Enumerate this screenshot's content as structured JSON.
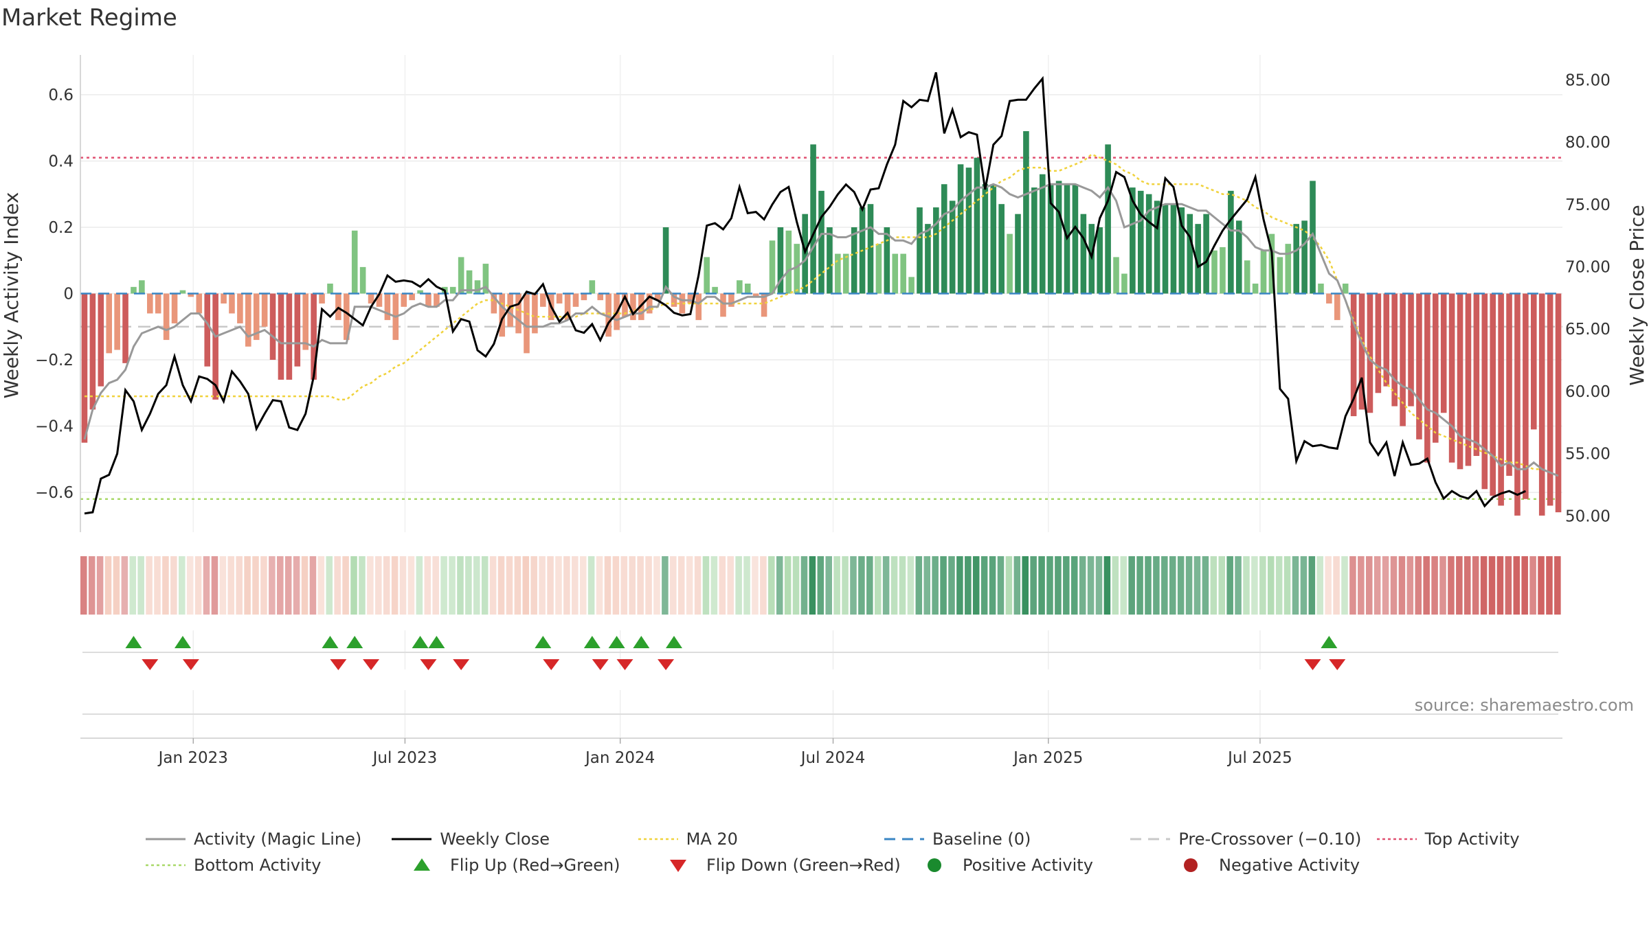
{
  "title": "Market Regime",
  "source": "source: sharemaestro.com",
  "colors": {
    "pos_dark": "#2e8b57",
    "pos_light": "#80c481",
    "neg_dark": "#cd5c5c",
    "neg_light": "#e9967a",
    "close": "#000000",
    "activity_line": "#999999",
    "ma20": "#f0d23c",
    "baseline": "#3a86c4",
    "pre_crossover": "#c8c8c8",
    "top": "#e05070",
    "bottom": "#a8d868",
    "flip_up": "#2ca02c",
    "flip_down": "#d62728",
    "pos_dot": "#1a8a2e",
    "neg_dot": "#b22222"
  },
  "legend": [
    {
      "label": "Activity (Magic Line)",
      "symbol": "line",
      "color": "#999999"
    },
    {
      "label": "Weekly Close",
      "symbol": "line",
      "color": "#000000"
    },
    {
      "label": "MA 20",
      "symbol": "dotted",
      "color": "#f0d23c"
    },
    {
      "label": "Baseline (0)",
      "symbol": "dashed",
      "color": "#3a86c4"
    },
    {
      "label": "Pre-Crossover (−0.10)",
      "symbol": "dashed",
      "color": "#c8c8c8"
    },
    {
      "label": "Top Activity",
      "symbol": "dotted",
      "color": "#e05070"
    },
    {
      "label": "Bottom Activity",
      "symbol": "dotted",
      "color": "#a8d868"
    },
    {
      "label": "Flip Up (Red→Green)",
      "symbol": "triangle-up",
      "color": "#2ca02c"
    },
    {
      "label": "Flip Down (Green→Red)",
      "symbol": "triangle-down",
      "color": "#d62728"
    },
    {
      "label": "Positive Activity",
      "symbol": "dot",
      "color": "#1a8a2e"
    },
    {
      "label": "Negative Activity",
      "symbol": "dot",
      "color": "#b22222"
    }
  ],
  "chart_data": {
    "type": "bar",
    "start_date": "2022-09-30",
    "frequency": "weekly",
    "left_axis": {
      "label": "Weekly Activity Index",
      "range": [
        -0.72,
        0.72
      ],
      "ticks": [
        "0.6",
        "0.4",
        "0.2",
        "0",
        "−0.2",
        "−0.4",
        "−0.6"
      ],
      "tick_values": [
        0.6,
        0.4,
        0.2,
        0,
        -0.2,
        -0.4,
        -0.6
      ]
    },
    "right_axis": {
      "label": "Weekly Close Price",
      "range": [
        48.7,
        87.0
      ],
      "ticks": [
        "85.00",
        "80.00",
        "75.00",
        "70.00",
        "65.00",
        "60.00",
        "55.00",
        "50.00"
      ],
      "tick_values": [
        85,
        80,
        75,
        70,
        65,
        60,
        55,
        50
      ]
    },
    "x_ticks": [
      {
        "label": "Jan 2023",
        "date": "2023-01-01"
      },
      {
        "label": "Jul 2023",
        "date": "2023-07-01"
      },
      {
        "label": "Jan 2024",
        "date": "2024-01-01"
      },
      {
        "label": "Jul 2024",
        "date": "2024-07-01"
      },
      {
        "label": "Jan 2025",
        "date": "2025-01-01"
      },
      {
        "label": "Jul 2025",
        "date": "2025-07-01"
      }
    ],
    "reference_lines": {
      "baseline": 0,
      "pre_crossover": -0.1,
      "top_activity": 0.41,
      "bottom_activity": -0.62
    },
    "activity": [
      -0.45,
      -0.35,
      -0.28,
      -0.18,
      -0.17,
      -0.21,
      0.02,
      0.04,
      -0.06,
      -0.06,
      -0.14,
      -0.09,
      0.01,
      -0.01,
      -0.06,
      -0.22,
      -0.32,
      -0.03,
      -0.06,
      -0.09,
      -0.16,
      -0.14,
      -0.1,
      -0.2,
      -0.26,
      -0.26,
      -0.22,
      -0.17,
      -0.26,
      -0.03,
      0.03,
      -0.08,
      -0.14,
      0.19,
      0.08,
      -0.03,
      -0.04,
      -0.08,
      -0.14,
      -0.04,
      -0.02,
      0.01,
      -0.04,
      -0.04,
      0.02,
      0.02,
      0.11,
      0.07,
      0.04,
      0.09,
      -0.06,
      -0.13,
      -0.1,
      -0.12,
      -0.18,
      -0.12,
      -0.04,
      -0.08,
      -0.03,
      -0.08,
      -0.04,
      -0.02,
      0.04,
      -0.02,
      -0.13,
      -0.11,
      -0.07,
      -0.08,
      -0.08,
      -0.06,
      -0.02,
      0.2,
      -0.04,
      -0.06,
      -0.03,
      -0.08,
      0.11,
      0.02,
      -0.07,
      -0.04,
      0.04,
      0.03,
      -0.01,
      -0.07,
      0.16,
      0.2,
      0.19,
      0.15,
      0.24,
      0.45,
      0.31,
      0.2,
      0.12,
      0.12,
      0.2,
      0.26,
      0.27,
      0.15,
      0.2,
      0.12,
      0.12,
      0.05,
      0.26,
      0.21,
      0.26,
      0.33,
      0.28,
      0.39,
      0.38,
      0.41,
      0.33,
      0.33,
      0.27,
      0.18,
      0.24,
      0.49,
      0.32,
      0.36,
      0.33,
      0.34,
      0.33,
      0.33,
      0.24,
      0.21,
      0.2,
      0.45,
      0.11,
      0.06,
      0.32,
      0.31,
      0.3,
      0.28,
      0.27,
      0.27,
      0.26,
      0.24,
      0.21,
      0.24,
      0.13,
      0.14,
      0.31,
      0.22,
      0.1,
      0.03,
      0.13,
      0.18,
      0.11,
      0.15,
      0.21,
      0.22,
      0.34,
      0.03,
      -0.03,
      -0.08,
      0.03,
      -0.37,
      -0.35,
      -0.36,
      -0.3,
      -0.28,
      -0.34,
      -0.4,
      -0.34,
      -0.44,
      -0.51,
      -0.45,
      -0.36,
      -0.51,
      -0.53,
      -0.52,
      -0.49,
      -0.59,
      -0.61,
      -0.64,
      -0.55,
      -0.67,
      -0.62,
      -0.41,
      -0.67,
      -0.64,
      -0.66
    ],
    "activity_line": [
      -0.44,
      -0.35,
      -0.3,
      -0.27,
      -0.26,
      -0.23,
      -0.16,
      -0.12,
      -0.11,
      -0.1,
      -0.11,
      -0.1,
      -0.08,
      -0.06,
      -0.06,
      -0.09,
      -0.13,
      -0.12,
      -0.11,
      -0.1,
      -0.13,
      -0.12,
      -0.11,
      -0.13,
      -0.15,
      -0.15,
      -0.15,
      -0.15,
      -0.16,
      -0.14,
      -0.15,
      -0.15,
      -0.15,
      -0.04,
      -0.04,
      -0.04,
      -0.05,
      -0.06,
      -0.07,
      -0.06,
      -0.04,
      -0.03,
      -0.04,
      -0.04,
      -0.02,
      -0.02,
      0.01,
      0.01,
      0.01,
      0.02,
      -0.01,
      -0.04,
      -0.06,
      -0.08,
      -0.1,
      -0.1,
      -0.1,
      -0.09,
      -0.09,
      -0.08,
      -0.06,
      -0.06,
      -0.04,
      -0.06,
      -0.07,
      -0.08,
      -0.07,
      -0.06,
      -0.06,
      -0.04,
      -0.04,
      0.02,
      -0.01,
      -0.02,
      -0.02,
      -0.03,
      -0.01,
      -0.01,
      -0.03,
      -0.03,
      -0.02,
      -0.01,
      -0.01,
      -0.01,
      0.0,
      0.04,
      0.07,
      0.08,
      0.1,
      0.14,
      0.18,
      0.18,
      0.17,
      0.17,
      0.18,
      0.19,
      0.2,
      0.18,
      0.18,
      0.16,
      0.16,
      0.15,
      0.18,
      0.19,
      0.21,
      0.24,
      0.25,
      0.28,
      0.3,
      0.32,
      0.32,
      0.33,
      0.32,
      0.3,
      0.29,
      0.3,
      0.31,
      0.32,
      0.33,
      0.33,
      0.33,
      0.33,
      0.32,
      0.31,
      0.29,
      0.32,
      0.28,
      0.2,
      0.21,
      0.22,
      0.25,
      0.26,
      0.27,
      0.27,
      0.27,
      0.26,
      0.25,
      0.25,
      0.23,
      0.21,
      0.19,
      0.19,
      0.17,
      0.14,
      0.13,
      0.13,
      0.12,
      0.12,
      0.13,
      0.15,
      0.18,
      0.12,
      0.06,
      0.04,
      -0.02,
      -0.09,
      -0.15,
      -0.2,
      -0.22,
      -0.23,
      -0.26,
      -0.28,
      -0.29,
      -0.32,
      -0.35,
      -0.36,
      -0.38,
      -0.4,
      -0.43,
      -0.44,
      -0.45,
      -0.47,
      -0.49,
      -0.52,
      -0.51,
      -0.53,
      -0.53,
      -0.51,
      -0.53,
      -0.54,
      -0.55
    ],
    "ma20": [
      -0.31,
      -0.31,
      -0.31,
      -0.31,
      -0.31,
      -0.31,
      -0.31,
      -0.31,
      -0.31,
      -0.31,
      -0.31,
      -0.31,
      -0.31,
      -0.31,
      -0.31,
      -0.31,
      -0.31,
      -0.31,
      -0.31,
      -0.31,
      -0.31,
      -0.31,
      -0.31,
      -0.31,
      -0.31,
      -0.31,
      -0.31,
      -0.31,
      -0.31,
      -0.31,
      -0.31,
      -0.32,
      -0.32,
      -0.3,
      -0.28,
      -0.27,
      -0.25,
      -0.24,
      -0.22,
      -0.21,
      -0.19,
      -0.17,
      -0.15,
      -0.13,
      -0.11,
      -0.09,
      -0.07,
      -0.05,
      -0.03,
      -0.02,
      -0.02,
      -0.03,
      -0.04,
      -0.05,
      -0.06,
      -0.07,
      -0.07,
      -0.07,
      -0.07,
      -0.07,
      -0.07,
      -0.06,
      -0.06,
      -0.06,
      -0.06,
      -0.06,
      -0.06,
      -0.05,
      -0.05,
      -0.05,
      -0.04,
      -0.03,
      -0.03,
      -0.03,
      -0.03,
      -0.03,
      -0.03,
      -0.03,
      -0.03,
      -0.03,
      -0.03,
      -0.03,
      -0.03,
      -0.03,
      -0.02,
      -0.01,
      0.0,
      0.01,
      0.02,
      0.04,
      0.06,
      0.08,
      0.1,
      0.11,
      0.12,
      0.13,
      0.14,
      0.15,
      0.16,
      0.17,
      0.17,
      0.17,
      0.17,
      0.17,
      0.18,
      0.2,
      0.22,
      0.24,
      0.26,
      0.28,
      0.3,
      0.32,
      0.34,
      0.35,
      0.37,
      0.38,
      0.38,
      0.38,
      0.37,
      0.37,
      0.38,
      0.39,
      0.4,
      0.42,
      0.41,
      0.4,
      0.39,
      0.37,
      0.36,
      0.34,
      0.33,
      0.33,
      0.33,
      0.33,
      0.33,
      0.33,
      0.33,
      0.32,
      0.31,
      0.3,
      0.3,
      0.29,
      0.28,
      0.26,
      0.25,
      0.23,
      0.22,
      0.21,
      0.2,
      0.19,
      0.17,
      0.14,
      0.1,
      0.04,
      -0.02,
      -0.08,
      -0.14,
      -0.19,
      -0.23,
      -0.27,
      -0.3,
      -0.33,
      -0.36,
      -0.38,
      -0.4,
      -0.42,
      -0.43,
      -0.44,
      -0.45,
      -0.46,
      -0.47,
      -0.48,
      -0.49,
      -0.5,
      -0.51,
      -0.51,
      -0.52,
      -0.53,
      -0.53
    ],
    "weekly_close": [
      50.2,
      50.3,
      53.0,
      53.3,
      55.0,
      60.1,
      59.2,
      56.9,
      58.2,
      59.8,
      60.5,
      62.8,
      60.5,
      59.2,
      61.2,
      61.0,
      60.5,
      59.2,
      61.6,
      60.8,
      59.8,
      57.0,
      58.2,
      59.3,
      59.2,
      57.1,
      56.9,
      58.2,
      61.2,
      66.6,
      66.0,
      66.7,
      66.3,
      65.8,
      65.3,
      66.8,
      67.8,
      69.3,
      68.8,
      68.9,
      68.8,
      68.4,
      69.0,
      68.4,
      68.1,
      64.8,
      65.8,
      65.6,
      63.3,
      62.8,
      63.8,
      65.8,
      66.8,
      67.0,
      68.0,
      67.8,
      68.6,
      66.8,
      65.6,
      66.3,
      64.9,
      64.7,
      65.4,
      64.1,
      65.5,
      66.3,
      67.6,
      66.2,
      66.9,
      67.6,
      67.3,
      66.9,
      66.3,
      66.1,
      66.2,
      69.3,
      73.3,
      73.5,
      73.0,
      73.9,
      76.4,
      74.3,
      74.4,
      73.8,
      75.0,
      76.0,
      76.4,
      73.6,
      71.2,
      72.6,
      74.0,
      74.8,
      75.8,
      76.6,
      76.0,
      74.6,
      76.2,
      76.3,
      78.2,
      79.8,
      83.3,
      82.8,
      83.4,
      83.3,
      85.6,
      80.7,
      82.6,
      80.4,
      80.8,
      80.6,
      76.2,
      79.8,
      80.5,
      83.3,
      83.4,
      83.4,
      84.3,
      85.1,
      75.1,
      74.4,
      72.3,
      73.2,
      72.3,
      70.8,
      73.9,
      75.3,
      77.6,
      77.2,
      75.3,
      74.2,
      73.6,
      73.1,
      77.1,
      76.4,
      73.3,
      72.4,
      70.0,
      70.4,
      71.7,
      72.9,
      73.8,
      74.6,
      75.4,
      77.2,
      73.8,
      71.2,
      60.2,
      59.4,
      54.4,
      56.0,
      55.6,
      55.7,
      55.5,
      55.4,
      58.0,
      59.4,
      61.1,
      55.9,
      54.9,
      55.9,
      53.2,
      55.9,
      54.1,
      54.2,
      54.6,
      52.7,
      51.4,
      52.0,
      51.6,
      51.4,
      52.0,
      50.8,
      51.5,
      51.8,
      52.0,
      51.7,
      52.0
    ],
    "flip_up_weeks": [
      6,
      12,
      30,
      33,
      41,
      43,
      56,
      62,
      65,
      68,
      72,
      152
    ],
    "flip_down_weeks": [
      8,
      13,
      31,
      35,
      42,
      46,
      57,
      63,
      66,
      71,
      150,
      153
    ]
  }
}
